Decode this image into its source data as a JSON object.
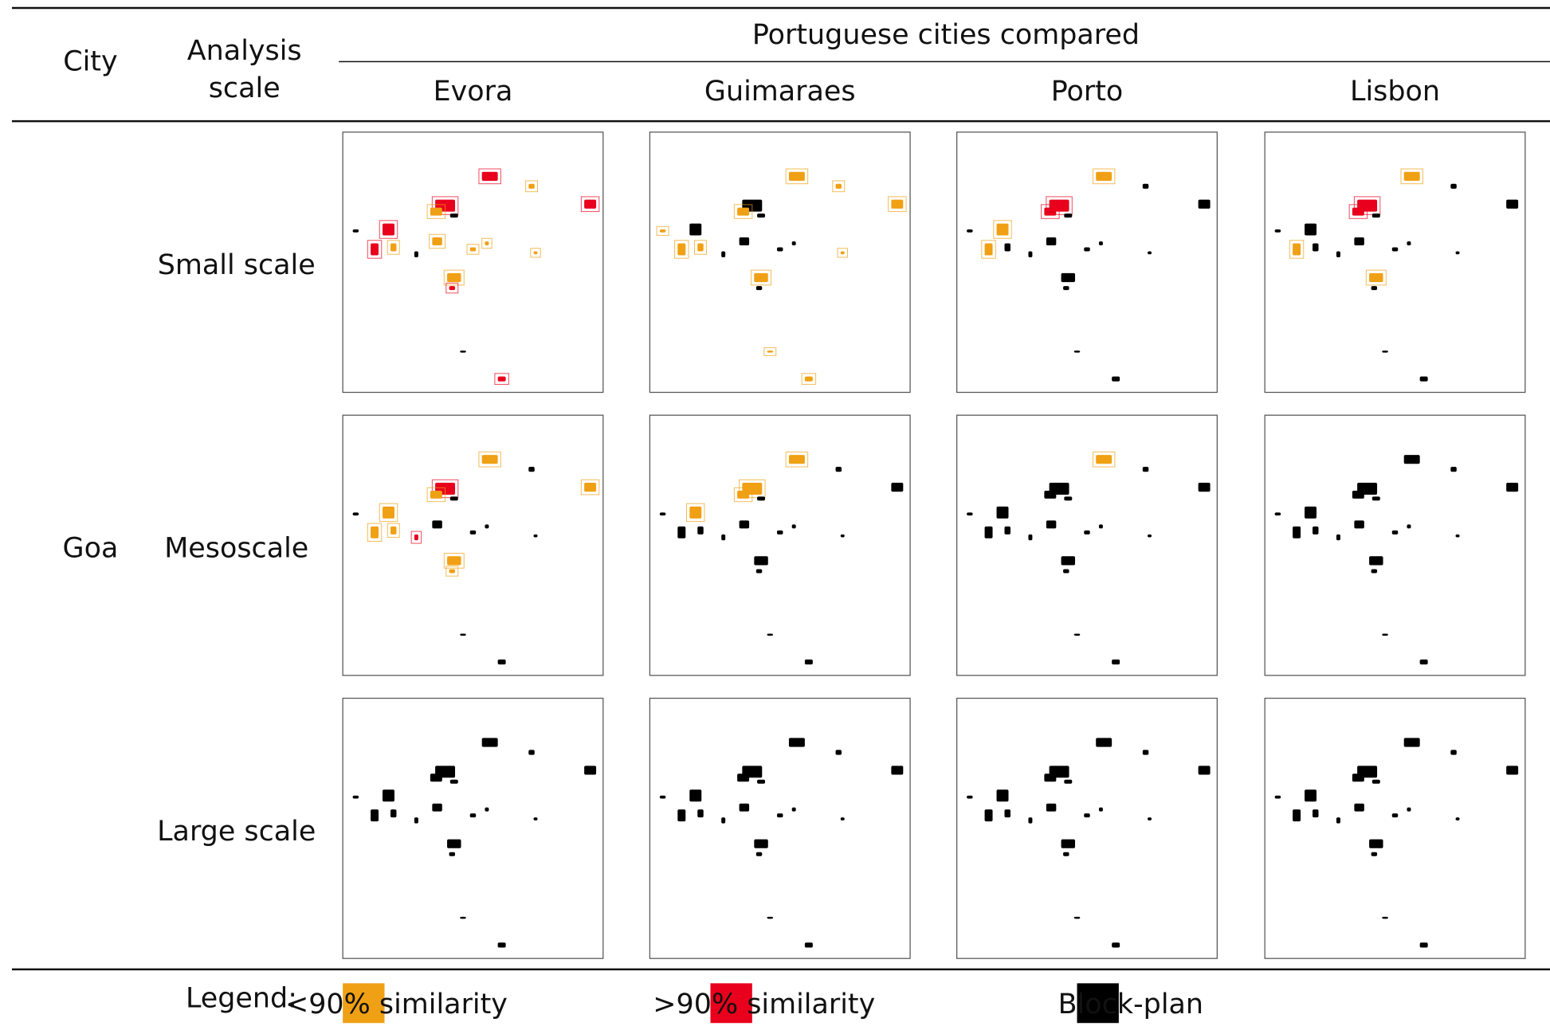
{
  "header": {
    "city": "City",
    "analysis_scale": [
      "Analysis",
      "scale"
    ],
    "group": "Portuguese cities compared",
    "columns": [
      "Evora",
      "Guimaraes",
      "Porto",
      "Lisbon"
    ]
  },
  "rows": [
    {
      "city": "Goa",
      "scales": [
        "Small scale",
        "Mesoscale",
        "Large scale"
      ]
    }
  ],
  "legend": {
    "title": "Legend:",
    "items": [
      {
        "label": "<90% similarity",
        "color": "#f0a014"
      },
      {
        "label": ">90% similarity",
        "color": "#e8001c"
      },
      {
        "label": "Block-plan",
        "color": "#000000"
      }
    ]
  }
}
